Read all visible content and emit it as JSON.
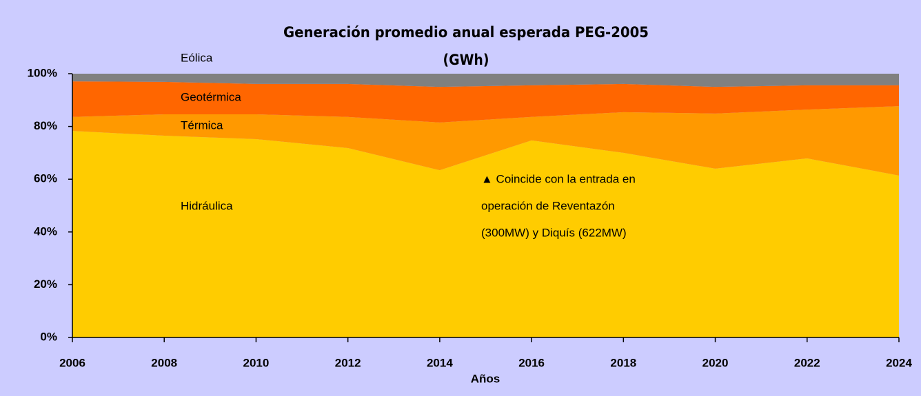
{
  "chart_data": {
    "type": "stacked_area",
    "title": "Generación promedio anual esperada PEG-2005",
    "subtitle": "(GWh)",
    "x_label": "Años",
    "x": [
      2006,
      2008,
      2010,
      2012,
      2014,
      2016,
      2018,
      2020,
      2022,
      2024
    ],
    "xlim": [
      2006,
      2024
    ],
    "xticks": [
      2006,
      2008,
      2010,
      2012,
      2014,
      2016,
      2018,
      2020,
      2022,
      2024
    ],
    "ylim": [
      0,
      100
    ],
    "yticks": [
      {
        "value": 0,
        "label": "0%"
      },
      {
        "value": 20,
        "label": "20%"
      },
      {
        "value": 40,
        "label": "40%"
      },
      {
        "value": 60,
        "label": "60%"
      },
      {
        "value": 80,
        "label": "80%"
      },
      {
        "value": 100,
        "label": "100%"
      }
    ],
    "series": [
      {
        "name": "Hidráulica",
        "color": "#ffcc00",
        "values": [
          78.3,
          76.5,
          75.2,
          71.8,
          63.4,
          74.7,
          70,
          64,
          67.9,
          61.4
        ]
      },
      {
        "name": "Térmica",
        "color": "#ff9900",
        "values": [
          5.3,
          8.1,
          9.4,
          11.8,
          18.1,
          8.9,
          15.4,
          20.9,
          18.5,
          26.3
        ]
      },
      {
        "name": "Geotérmica",
        "color": "#ff6600",
        "values": [
          13.5,
          12.3,
          11.5,
          12.5,
          13.5,
          12,
          10.7,
          10.1,
          9.2,
          7.9
        ]
      },
      {
        "name": "Eólica",
        "color": "#808080",
        "values": [
          2.9,
          3.1,
          3.9,
          3.9,
          5,
          4.4,
          3.9,
          5,
          4.4,
          4.4
        ]
      }
    ],
    "annotation": [
      "▲ Coincide con la entrada en",
      "operación de Reventazón",
      "(300MW) y Diquís (622MW)"
    ]
  }
}
